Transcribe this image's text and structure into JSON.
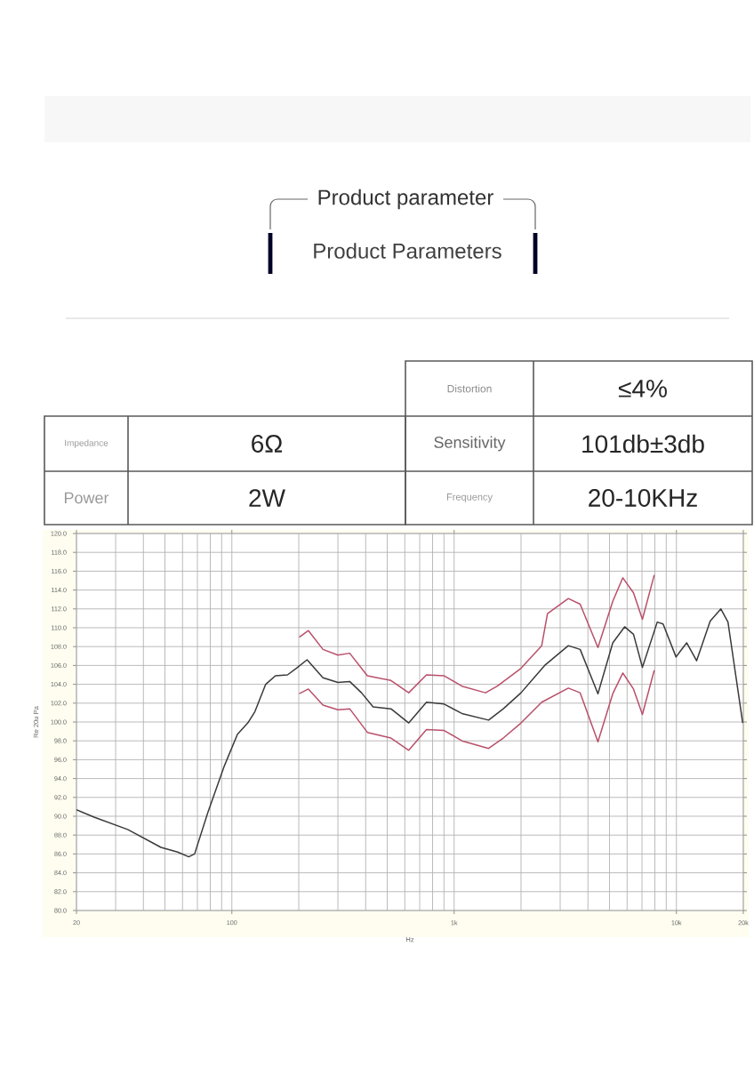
{
  "chart_data": {
    "type": "line",
    "title": "Product parameter",
    "subtitle": "Product Parameters",
    "annotations": [
      "Distortion",
      "≤4%",
      "Impedance",
      "6Ω",
      "Sensitivity",
      "101db±3db",
      "Power",
      "2W",
      "Frequency",
      "20-10KHz"
    ],
    "xlabel": "Hz",
    "ylabel": "Re 20u Pa",
    "log": "x",
    "grid": true,
    "xlim": [
      20,
      20000
    ],
    "xticks": [
      20,
      100,
      {
        "value": 1000,
        "label": "1k"
      },
      {
        "value": 10000,
        "label": "10k"
      },
      {
        "value": 20000,
        "label": "20k"
      }
    ],
    "ylim": [
      80,
      120
    ],
    "yticks": [
      {
        "value": 80,
        "label": "80.0"
      },
      {
        "value": 82,
        "label": "82.0"
      },
      {
        "value": 84,
        "label": "84.0"
      },
      {
        "value": 86,
        "label": "86.0"
      },
      {
        "value": 88,
        "label": "88.0"
      },
      {
        "value": 90,
        "label": "90.0"
      },
      {
        "value": 92,
        "label": "92.0"
      },
      {
        "value": 94,
        "label": "94.0"
      },
      {
        "value": 96,
        "label": "96.0"
      },
      {
        "value": 98,
        "label": "98.0"
      },
      {
        "value": 100,
        "label": "100.0"
      },
      {
        "value": 102,
        "label": "102.0"
      },
      {
        "value": 104,
        "label": "104.0"
      },
      {
        "value": 106,
        "label": "106.0"
      },
      {
        "value": 108,
        "label": "108.0"
      },
      {
        "value": 110,
        "label": "110.0"
      },
      {
        "value": 112,
        "label": "112.0"
      },
      {
        "value": 114,
        "label": "114.0"
      },
      {
        "value": 116,
        "label": "116.0"
      },
      {
        "value": 118,
        "label": "118.0"
      },
      {
        "value": 120,
        "label": "120.0"
      }
    ],
    "series": [
      {
        "color": "#3a3a3a",
        "x": [
          20,
          24,
          34,
          48,
          57,
          64,
          68,
          78,
          92,
          106,
          118,
          127,
          142,
          157,
          178,
          195,
          218,
          257,
          300,
          339,
          383,
          432,
          520,
          625,
          751,
          902,
          1084,
          1429,
          1664,
          2000,
          2554,
          3264,
          3690,
          4436,
          5172,
          5848,
          6412,
          7031,
          8200,
          8710,
          9960,
          11120,
          12330,
          14190,
          15850,
          17060,
          19870
        ],
        "values": [
          90.7,
          89.9,
          88.6,
          86.7,
          86.2,
          85.7,
          86.0,
          90.4,
          95.2,
          98.7,
          99.9,
          101.1,
          104.0,
          104.9,
          105.0,
          105.7,
          106.6,
          104.7,
          104.2,
          104.3,
          103.1,
          101.6,
          101.4,
          99.9,
          102.1,
          101.9,
          100.9,
          100.2,
          101.4,
          103.1,
          106.0,
          108.1,
          107.7,
          103.0,
          108.4,
          110.1,
          109.3,
          105.8,
          110.6,
          110.4,
          106.9,
          108.4,
          106.5,
          110.7,
          112.0,
          110.6,
          99.9
        ]
      },
      {
        "color": "#b9506a",
        "x": [
          201,
          221,
          257,
          300,
          339,
          407,
          520,
          625,
          751,
          902,
          1084,
          1384,
          1564,
          2000,
          2477,
          2630,
          3264,
          3690,
          4436,
          5172,
          5740,
          6412,
          7031,
          7950
        ],
        "values": [
          109.0,
          109.7,
          107.7,
          107.1,
          107.3,
          104.9,
          104.4,
          103.1,
          105.0,
          104.9,
          103.8,
          103.1,
          103.8,
          105.7,
          108.1,
          111.5,
          113.1,
          112.5,
          107.9,
          112.8,
          115.3,
          113.7,
          110.9,
          115.6
        ]
      },
      {
        "color": "#b9506a",
        "x": [
          201,
          221,
          257,
          300,
          339,
          407,
          520,
          625,
          751,
          902,
          1084,
          1429,
          1664,
          2000,
          2477,
          3264,
          3690,
          4436,
          5172,
          5740,
          6412,
          7031,
          7950
        ],
        "values": [
          103.0,
          103.5,
          101.8,
          101.3,
          101.4,
          98.9,
          98.3,
          97.0,
          99.2,
          99.1,
          98.0,
          97.2,
          98.3,
          99.9,
          102.1,
          103.6,
          103.1,
          97.9,
          103.0,
          105.2,
          103.5,
          100.8,
          105.5
        ]
      }
    ]
  }
}
